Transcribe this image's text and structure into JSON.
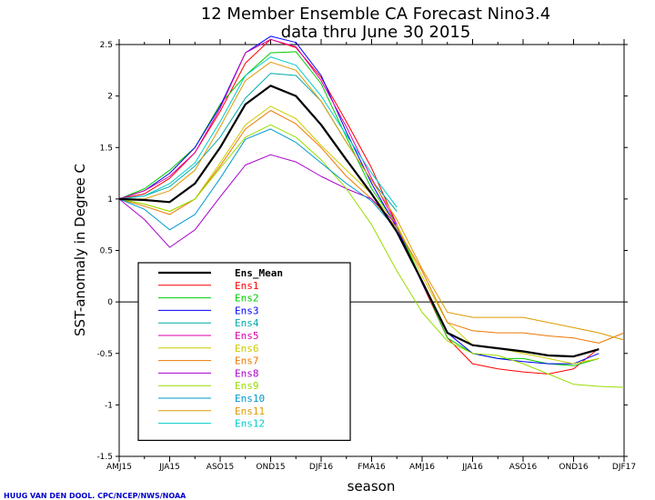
{
  "chart_data": {
    "type": "line",
    "title": "12 Member Ensemble CA Forecast Nino3.4",
    "subtitle": "data thru June 30 2015",
    "xlabel": "season",
    "ylabel": "SST-anomaly in Degree C",
    "credit": "HUUG VAN DEN DOOL. CPC/NCEP/NWS/NOAA",
    "ylim": [
      -1.5,
      2.5
    ],
    "yticks": [
      "-1.5",
      "-1",
      "-0.5",
      "0",
      "0.5",
      "1",
      "1.5",
      "2",
      "2.5"
    ],
    "x_tick_labels": [
      "AMJ15",
      "JJA15",
      "ASO15",
      "OND15",
      "DJF16",
      "FMA16",
      "AMJ16",
      "JJA16",
      "ASO16",
      "OND16",
      "DJF17"
    ],
    "x": [
      "AMJ15",
      "MJJ15",
      "JJA15",
      "JAS15",
      "ASO15",
      "SON15",
      "OND15",
      "NDJ15",
      "DJF16",
      "JFM16",
      "FMA16",
      "MAM16",
      "AMJ16",
      "MJJ16",
      "JJA16",
      "JAS16",
      "ASO16",
      "SON16",
      "OND16",
      "NDJ16",
      "DJF17"
    ],
    "legend_position": "lower-left",
    "series": [
      {
        "name": "Ens_Mean",
        "color": "#000000",
        "width": 2.2,
        "values": [
          1.0,
          0.99,
          0.97,
          1.15,
          1.5,
          1.92,
          2.1,
          2.0,
          1.72,
          1.38,
          1.05,
          0.68,
          null,
          null,
          null,
          null,
          null,
          null,
          null,
          null,
          null
        ]
      },
      {
        "name": "Ens_Mean",
        "color": "#000000",
        "width": 2.2,
        "legend": false,
        "values": [
          null,
          null,
          null,
          null,
          null,
          null,
          null,
          null,
          null,
          null,
          null,
          0.68,
          0.2,
          -0.3,
          -0.42,
          -0.45,
          -0.48,
          -0.52,
          -0.53,
          -0.46,
          null
        ]
      },
      {
        "name": "Ens1",
        "color": "#ff0000",
        "width": 1,
        "values": [
          1.0,
          1.05,
          1.2,
          1.45,
          1.85,
          2.32,
          2.55,
          2.47,
          2.18,
          1.75,
          1.3,
          0.75,
          0.18,
          -0.35,
          -0.6,
          -0.65,
          -0.68,
          -0.7,
          -0.65,
          -0.45,
          null
        ]
      },
      {
        "name": "Ens2",
        "color": "#00cc00",
        "width": 1,
        "values": [
          1.0,
          1.1,
          1.28,
          1.5,
          1.92,
          2.2,
          2.42,
          2.43,
          2.12,
          1.6,
          1.1,
          0.75,
          0.2,
          -0.35,
          -0.5,
          -0.55,
          -0.55,
          -0.6,
          -0.62,
          -0.55,
          null
        ]
      },
      {
        "name": "Ens3",
        "color": "#0000ff",
        "width": 1,
        "values": [
          1.0,
          1.08,
          1.25,
          1.5,
          1.9,
          2.42,
          2.58,
          2.52,
          2.2,
          1.65,
          1.15,
          0.72,
          0.18,
          -0.3,
          -0.5,
          -0.55,
          -0.58,
          -0.6,
          -0.6,
          -0.5,
          null
        ]
      },
      {
        "name": "Ens4",
        "color": "#00aaaa",
        "width": 1,
        "values": [
          1.0,
          1.03,
          1.12,
          1.32,
          1.6,
          1.98,
          2.22,
          2.2,
          1.95,
          1.55,
          1.18,
          0.88,
          null,
          null,
          null,
          null,
          null,
          null,
          null,
          null,
          null
        ]
      },
      {
        "name": "Ens5",
        "color": "#dd00aa",
        "width": 1,
        "values": [
          1.0,
          1.08,
          1.22,
          1.45,
          1.88,
          2.42,
          2.55,
          2.48,
          2.15,
          1.7,
          1.2,
          0.75,
          null,
          null,
          null,
          null,
          null,
          null,
          null,
          null,
          null
        ]
      },
      {
        "name": "Ens6",
        "color": "#cccc00",
        "width": 1,
        "values": [
          1.0,
          0.95,
          0.88,
          1.0,
          1.35,
          1.72,
          1.9,
          1.78,
          1.52,
          1.28,
          1.05,
          0.75,
          0.25,
          -0.2,
          -0.42,
          -0.45,
          -0.5,
          -0.55,
          -0.6,
          -0.55,
          null
        ]
      },
      {
        "name": "Ens7",
        "color": "#ee7700",
        "width": 1,
        "values": [
          1.0,
          0.93,
          0.85,
          1.0,
          1.32,
          1.68,
          1.86,
          1.73,
          1.5,
          1.22,
          1.0,
          0.72,
          0.3,
          -0.2,
          -0.28,
          -0.3,
          -0.3,
          -0.33,
          -0.35,
          -0.4,
          -0.3
        ]
      },
      {
        "name": "Ens8",
        "color": "#aa00cc",
        "width": 1,
        "values": [
          1.0,
          0.8,
          0.53,
          0.7,
          1.02,
          1.33,
          1.43,
          1.36,
          1.22,
          1.1,
          1.0,
          0.75,
          null,
          null,
          null,
          null,
          null,
          null,
          null,
          null,
          null
        ]
      },
      {
        "name": "Ens9",
        "color": "#99dd00",
        "width": 1,
        "values": [
          1.0,
          0.95,
          0.88,
          1.0,
          1.3,
          1.6,
          1.72,
          1.6,
          1.38,
          1.1,
          0.75,
          0.3,
          -0.1,
          -0.38,
          -0.5,
          -0.52,
          -0.6,
          -0.7,
          -0.8,
          -0.82,
          -0.83
        ]
      },
      {
        "name": "Ens10",
        "color": "#0099cc",
        "width": 1,
        "values": [
          1.0,
          0.9,
          0.7,
          0.85,
          1.2,
          1.58,
          1.68,
          1.55,
          1.35,
          1.15,
          0.98,
          0.7,
          null,
          null,
          null,
          null,
          null,
          null,
          null,
          null,
          null
        ]
      },
      {
        "name": "Ens11",
        "color": "#dd9900",
        "width": 1,
        "values": [
          1.0,
          1.0,
          1.08,
          1.28,
          1.7,
          2.15,
          2.33,
          2.25,
          1.95,
          1.55,
          1.18,
          0.8,
          0.32,
          -0.1,
          -0.15,
          -0.15,
          -0.15,
          -0.2,
          -0.25,
          -0.3,
          -0.37
        ]
      },
      {
        "name": "Ens12",
        "color": "#00cccc",
        "width": 1,
        "values": [
          1.0,
          1.03,
          1.15,
          1.35,
          1.75,
          2.2,
          2.38,
          2.3,
          2.0,
          1.62,
          1.25,
          0.92,
          null,
          null,
          null,
          null,
          null,
          null,
          null,
          null,
          null
        ]
      }
    ]
  }
}
